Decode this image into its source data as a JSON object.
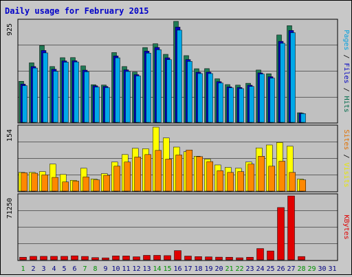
{
  "chart_data": {
    "type": "bar",
    "title": "Daily usage for February 2015",
    "days": [
      "1",
      "2",
      "3",
      "4",
      "5",
      "6",
      "7",
      "8",
      "9",
      "10",
      "11",
      "12",
      "13",
      "14",
      "15",
      "16",
      "17",
      "18",
      "19",
      "20",
      "21",
      "22",
      "23",
      "24",
      "25",
      "26",
      "27",
      "28",
      "29",
      "30",
      "31"
    ],
    "weekend_days": [
      "1",
      "7",
      "8",
      "14",
      "15",
      "21",
      "22",
      "28",
      "29"
    ],
    "panels": [
      {
        "id": "hits",
        "ymax_label": "925",
        "ylim": [
          0,
          925
        ],
        "right_labels": [
          {
            "text": "Pages",
            "color": "#00a0e0"
          },
          {
            "text": " / ",
            "color": "#000000"
          },
          {
            "text": "Files",
            "color": "#0000c0"
          },
          {
            "text": " / ",
            "color": "#000000"
          },
          {
            "text": "Hits",
            "color": "#006b4a"
          }
        ],
        "series": [
          {
            "name": "Hits",
            "color": "#1f7a55",
            "values": [
              376,
              545,
              703,
              511,
              592,
              593,
              517,
              345,
              342,
              639,
              511,
              461,
              685,
              720,
              623,
              925,
              611,
              491,
              492,
              399,
              346,
              341,
              358,
              479,
              445,
              800,
              885,
              88,
              0,
              0,
              0
            ]
          },
          {
            "name": "Files",
            "color": "#0000c0",
            "values": [
              350,
              511,
              658,
              486,
              563,
              564,
              478,
              335,
              329,
              608,
              481,
              437,
              652,
              686,
              591,
              872,
              575,
              459,
              460,
              373,
              325,
              319,
              340,
              453,
              418,
              742,
              841,
              84,
              0,
              0,
              0
            ]
          },
          {
            "name": "Pages",
            "color": "#00a8e8",
            "values": [
              336,
              497,
              636,
              468,
              551,
              553,
              463,
              323,
              318,
              591,
              466,
              425,
              634,
              665,
              574,
              844,
              558,
              447,
              447,
              360,
              316,
              309,
              329,
              442,
              405,
              724,
              821,
              80,
              0,
              0,
              0
            ]
          }
        ]
      },
      {
        "id": "visits",
        "ymax_label": "154",
        "ylim": [
          0,
          154
        ],
        "right_labels": [
          {
            "text": "Sites",
            "color": "#e07000"
          },
          {
            "text": " / ",
            "color": "#000000"
          },
          {
            "text": "Visits",
            "color": "#e8e800"
          }
        ],
        "series": [
          {
            "name": "Visits",
            "color": "#ffff00",
            "values": [
              45,
              45,
              47,
              65,
              40,
              26,
              55,
              29,
              42,
              70,
              88,
              103,
              102,
              154,
              128,
              106,
              95,
              84,
              77,
              63,
              57,
              55,
              70,
              104,
              111,
              117,
              108,
              29,
              0,
              0,
              0
            ]
          },
          {
            "name": "Sites",
            "color": "#ff8800",
            "values": [
              44,
              43,
              39,
              33,
              22,
              24,
              34,
              27,
              38,
              60,
              70,
              82,
              88,
              98,
              77,
              87,
              99,
              83,
              71,
              49,
              45,
              47,
              65,
              84,
              60,
              72,
              45,
              27,
              0,
              0,
              0
            ]
          }
        ]
      },
      {
        "id": "kbytes",
        "ymax_label": "71250",
        "ylim": [
          0,
          71250
        ],
        "right_labels": [
          {
            "text": "KBytes",
            "color": "#e00000"
          }
        ],
        "series": [
          {
            "name": "KBytes",
            "color": "#e00000",
            "values": [
              2900,
              3900,
              3900,
              3900,
              3900,
              4500,
              3800,
              2500,
              2200,
              4400,
              4300,
              3400,
              5000,
              5000,
              4700,
              10300,
              4200,
              3600,
              3300,
              3000,
              2900,
              2300,
              2900,
              12600,
              9900,
              58300,
              71250,
              3700,
              0,
              0,
              0
            ]
          }
        ]
      }
    ]
  }
}
